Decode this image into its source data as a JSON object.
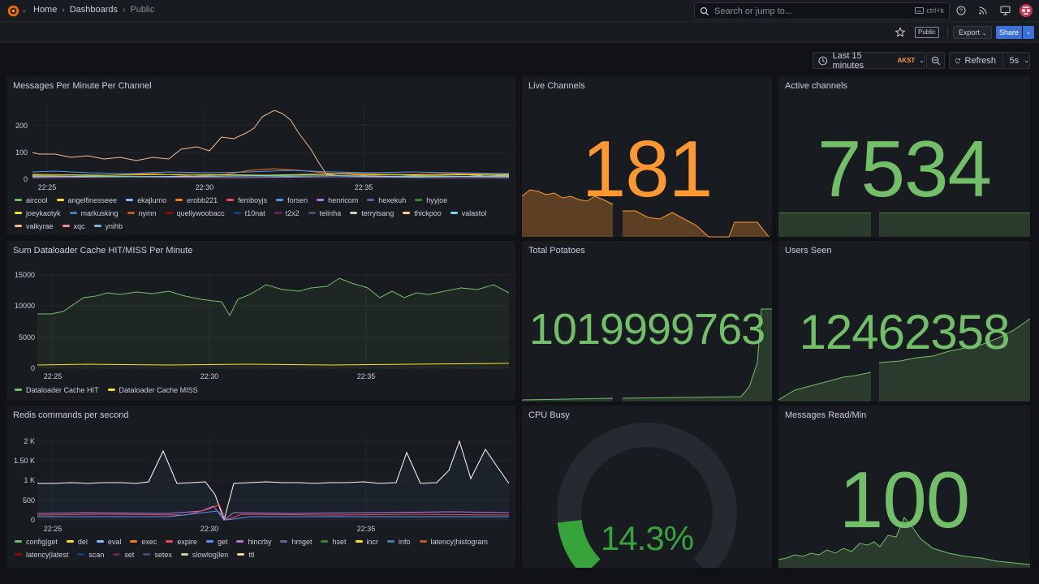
{
  "breadcrumb": {
    "home": "Home",
    "dashboards": "Dashboards",
    "current": "Public"
  },
  "search": {
    "placeholder": "Search or jump to...",
    "shortcut": "ctrl+k"
  },
  "toolbar": {
    "public_badge": "Public",
    "export_label": "Export",
    "share_label": "Share"
  },
  "time": {
    "range_label": "Last 15 minutes",
    "timezone": "AKST",
    "refresh_label": "Refresh",
    "refresh_interval": "5s"
  },
  "colors": {
    "accent": "#3d71d9",
    "green": "#73bf69",
    "orange": "#ff9830",
    "red": "#e02f44"
  },
  "panels": {
    "messages_per_minute": {
      "title": "Messages Per Minute Per Channel",
      "y_ticks": [
        "200",
        "100",
        "0"
      ],
      "x_ticks": [
        "22:25",
        "22:30",
        "22:35"
      ],
      "legend": [
        {
          "name": "aircool",
          "color": "#73bf69"
        },
        {
          "name": "angelfinesseee",
          "color": "#fade2a"
        },
        {
          "name": "ekajlumo",
          "color": "#8ab8ff"
        },
        {
          "name": "erobb221",
          "color": "#ff780a"
        },
        {
          "name": "femboyjs",
          "color": "#f2495c"
        },
        {
          "name": "forsen",
          "color": "#5794f2"
        },
        {
          "name": "henricom",
          "color": "#b877d9"
        },
        {
          "name": "hexekuh",
          "color": "#705da0"
        },
        {
          "name": "hyyjoe",
          "color": "#37872d"
        },
        {
          "name": "joeykaotyk",
          "color": "#fade2a"
        },
        {
          "name": "markusking",
          "color": "#447ebc"
        },
        {
          "name": "nymn",
          "color": "#c15c17"
        },
        {
          "name": "quellywoobacc",
          "color": "#890f02"
        },
        {
          "name": "t10nat",
          "color": "#0a437c"
        },
        {
          "name": "t2x2",
          "color": "#6d1f62"
        },
        {
          "name": "telinha",
          "color": "#584477"
        },
        {
          "name": "terrytsang",
          "color": "#b7dbab"
        },
        {
          "name": "thickpoo",
          "color": "#f4d598"
        },
        {
          "name": "valastol",
          "color": "#70dbed"
        },
        {
          "name": "valkyrae",
          "color": "#f9ba8f"
        },
        {
          "name": "xqc",
          "color": "#f29191"
        },
        {
          "name": "ynihb",
          "color": "#82b5d8"
        }
      ]
    },
    "live_channels": {
      "title": "Live Channels",
      "value": "181"
    },
    "active_channels": {
      "title": "Active channels",
      "value": "7534"
    },
    "dataloader": {
      "title": "Sum Dataloader Cache HIT/MISS Per Minute",
      "y_ticks": [
        "15000",
        "10000",
        "5000",
        "0"
      ],
      "x_ticks": [
        "22:25",
        "22:30",
        "22:35"
      ],
      "legend": [
        {
          "name": "Dataloader Cache HIT",
          "color": "#73bf69"
        },
        {
          "name": "Dataloader Cache MISS",
          "color": "#fade2a"
        }
      ]
    },
    "total_potatoes": {
      "title": "Total Potatoes",
      "value": "1019999763"
    },
    "users_seen": {
      "title": "Users Seen",
      "value": "12462358"
    },
    "redis": {
      "title": "Redis commands per second",
      "y_ticks": [
        "2 K",
        "1.50 K",
        "1 K",
        "500",
        "0"
      ],
      "x_ticks": [
        "22:25",
        "22:30",
        "22:35"
      ],
      "legend": [
        {
          "name": "config|get",
          "color": "#73bf69"
        },
        {
          "name": "del",
          "color": "#fade2a"
        },
        {
          "name": "eval",
          "color": "#8ab8ff"
        },
        {
          "name": "exec",
          "color": "#ff780a"
        },
        {
          "name": "expire",
          "color": "#f2495c"
        },
        {
          "name": "get",
          "color": "#5794f2"
        },
        {
          "name": "hincrby",
          "color": "#b877d9"
        },
        {
          "name": "hmget",
          "color": "#705da0"
        },
        {
          "name": "hset",
          "color": "#37872d"
        },
        {
          "name": "incr",
          "color": "#fade2a"
        },
        {
          "name": "info",
          "color": "#447ebc"
        },
        {
          "name": "latency|histogram",
          "color": "#c15c17"
        },
        {
          "name": "latency|latest",
          "color": "#890f02"
        },
        {
          "name": "scan",
          "color": "#0a437c"
        },
        {
          "name": "set",
          "color": "#6d1f62"
        },
        {
          "name": "setex",
          "color": "#584477"
        },
        {
          "name": "slowlog|len",
          "color": "#b7dbab"
        },
        {
          "name": "ttl",
          "color": "#f4d598"
        }
      ]
    },
    "cpu_busy": {
      "title": "CPU Busy",
      "value": "14.3%",
      "percent": 14.3
    },
    "messages_read": {
      "title": "Messages Read/Min",
      "value": "100"
    }
  }
}
